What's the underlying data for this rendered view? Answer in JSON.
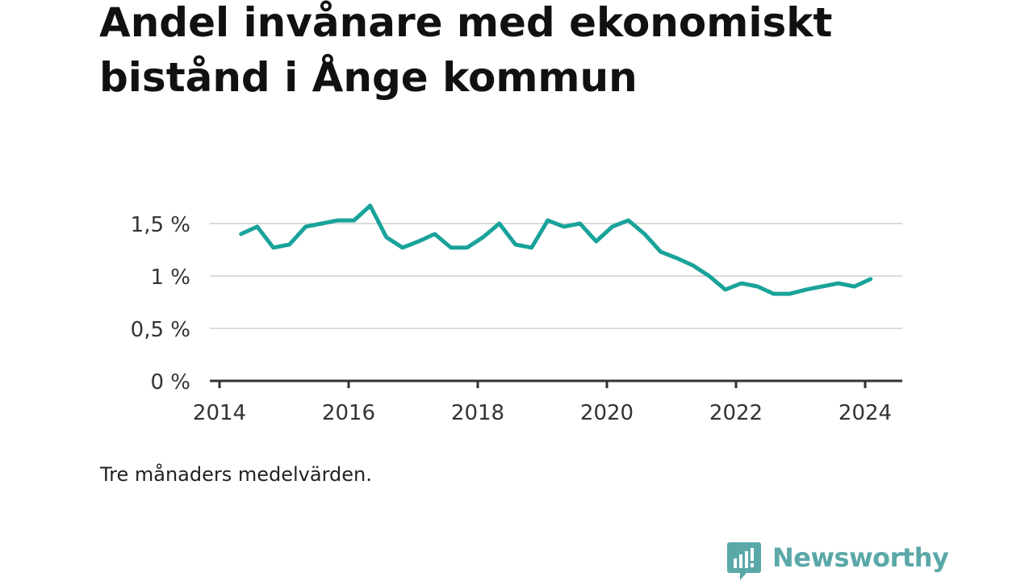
{
  "brand": {
    "name": "Newsworthy",
    "color": "#5aa8a8"
  },
  "note": "Tre månaders medelvärden.",
  "chart_data": {
    "type": "line",
    "title": "Andel invånare med ekonomiskt bistånd i Ånge kommun",
    "xlabel": "",
    "ylabel": "",
    "line_color": "#19a39a",
    "grid": true,
    "ylim": [
      0,
      1.8
    ],
    "yticks": [
      {
        "value": 0,
        "label": "0 %"
      },
      {
        "value": 0.5,
        "label": "0,5 %"
      },
      {
        "value": 1,
        "label": "1 %"
      },
      {
        "value": 1.5,
        "label": "1,5 %"
      }
    ],
    "xticks": [
      {
        "value": 2014,
        "label": "2014"
      },
      {
        "value": 2016,
        "label": "2016"
      },
      {
        "value": 2018,
        "label": "2018"
      },
      {
        "value": 2020,
        "label": "2020"
      },
      {
        "value": 2022,
        "label": "2022"
      },
      {
        "value": 2024,
        "label": "2024"
      }
    ],
    "series": [
      {
        "points": [
          {
            "x": "2014-05",
            "y": 1.4
          },
          {
            "x": "2014-08",
            "y": 1.47
          },
          {
            "x": "2014-11",
            "y": 1.27
          },
          {
            "x": "2015-02",
            "y": 1.3
          },
          {
            "x": "2015-05",
            "y": 1.47
          },
          {
            "x": "2015-08",
            "y": 1.5
          },
          {
            "x": "2015-11",
            "y": 1.53
          },
          {
            "x": "2016-02",
            "y": 1.53
          },
          {
            "x": "2016-05",
            "y": 1.67
          },
          {
            "x": "2016-08",
            "y": 1.37
          },
          {
            "x": "2016-11",
            "y": 1.27
          },
          {
            "x": "2017-02",
            "y": 1.33
          },
          {
            "x": "2017-05",
            "y": 1.4
          },
          {
            "x": "2017-08",
            "y": 1.27
          },
          {
            "x": "2017-11",
            "y": 1.27
          },
          {
            "x": "2018-02",
            "y": 1.37
          },
          {
            "x": "2018-05",
            "y": 1.5
          },
          {
            "x": "2018-08",
            "y": 1.3
          },
          {
            "x": "2018-11",
            "y": 1.27
          },
          {
            "x": "2019-02",
            "y": 1.53
          },
          {
            "x": "2019-05",
            "y": 1.47
          },
          {
            "x": "2019-08",
            "y": 1.5
          },
          {
            "x": "2019-11",
            "y": 1.33
          },
          {
            "x": "2020-02",
            "y": 1.47
          },
          {
            "x": "2020-05",
            "y": 1.53
          },
          {
            "x": "2020-08",
            "y": 1.4
          },
          {
            "x": "2020-11",
            "y": 1.23
          },
          {
            "x": "2021-02",
            "y": 1.17
          },
          {
            "x": "2021-05",
            "y": 1.1
          },
          {
            "x": "2021-08",
            "y": 1.0
          },
          {
            "x": "2021-11",
            "y": 0.87
          },
          {
            "x": "2022-02",
            "y": 0.93
          },
          {
            "x": "2022-05",
            "y": 0.9
          },
          {
            "x": "2022-08",
            "y": 0.83
          },
          {
            "x": "2022-11",
            "y": 0.83
          },
          {
            "x": "2023-02",
            "y": 0.87
          },
          {
            "x": "2023-05",
            "y": 0.9
          },
          {
            "x": "2023-08",
            "y": 0.93
          },
          {
            "x": "2023-11",
            "y": 0.9
          },
          {
            "x": "2024-02",
            "y": 0.97
          }
        ]
      }
    ]
  }
}
